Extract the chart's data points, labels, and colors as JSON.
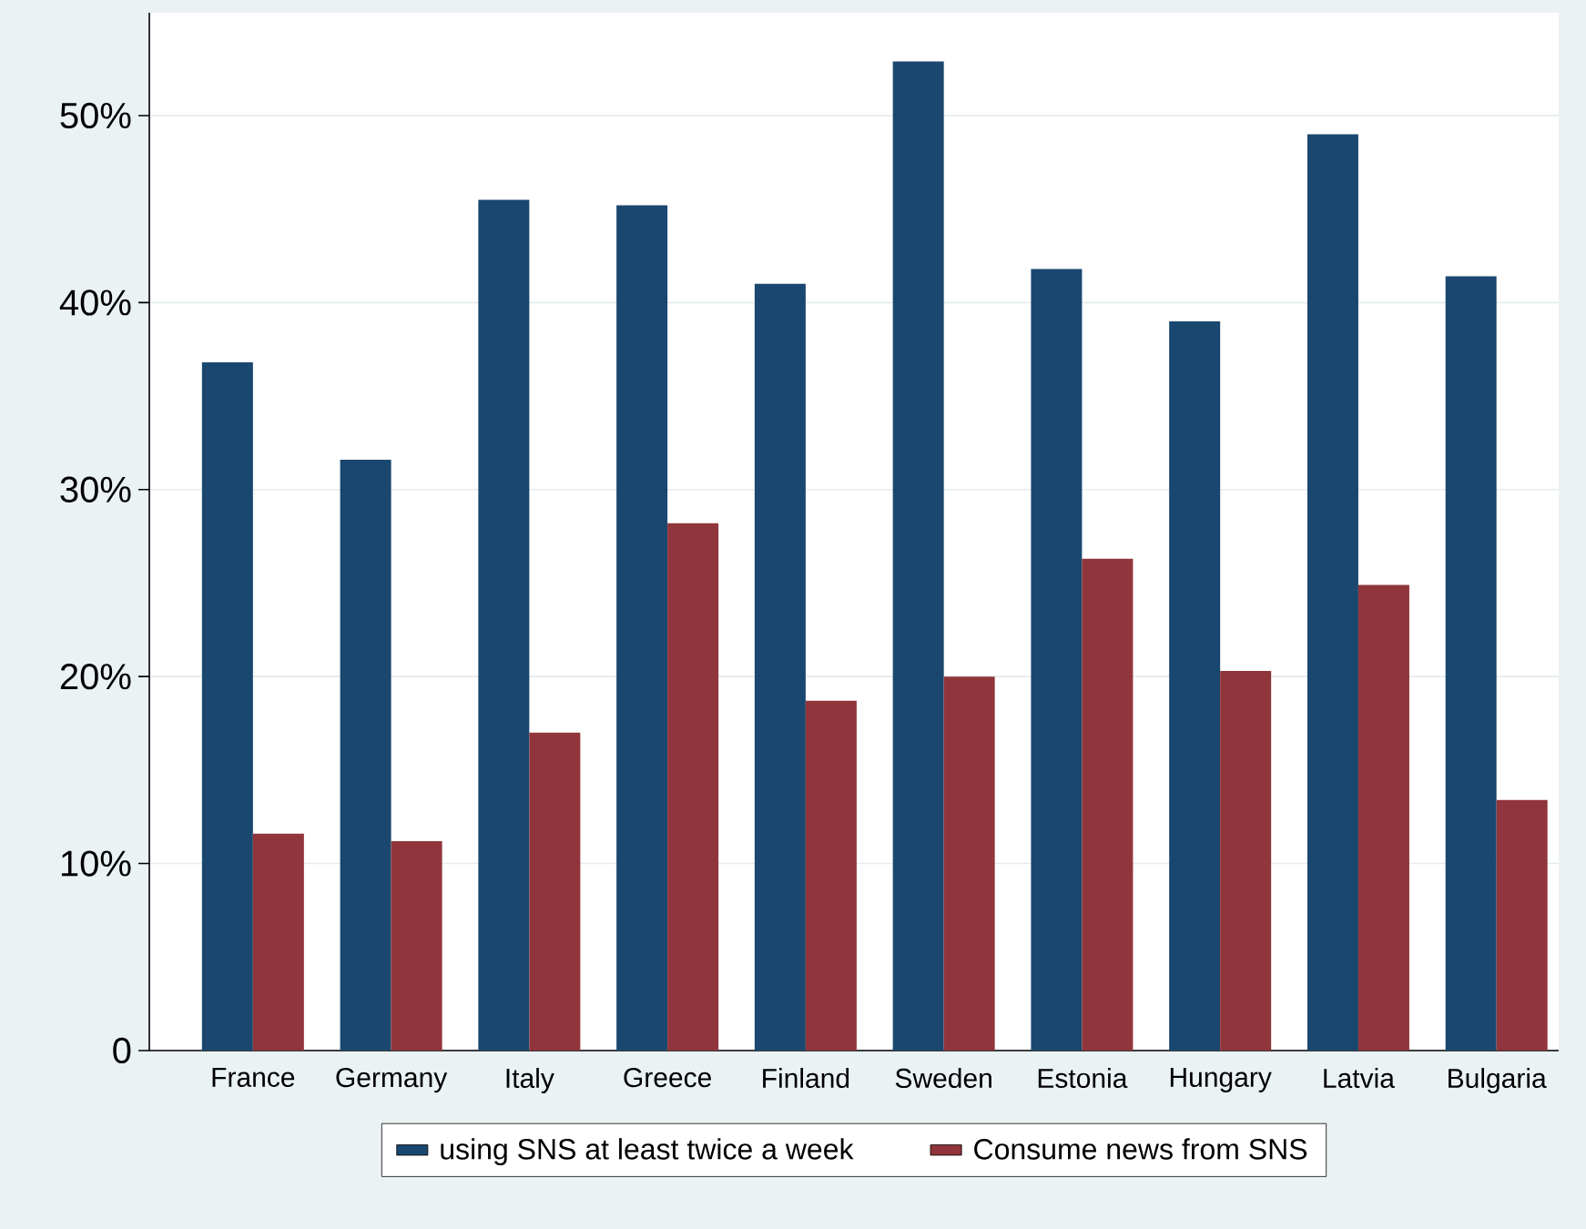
{
  "chart_data": {
    "type": "bar",
    "categories": [
      "France",
      "Germany",
      "Italy",
      "Greece",
      "Finland",
      "Sweden",
      "Estonia",
      "Hungary",
      "Latvia",
      "Bulgaria"
    ],
    "series": [
      {
        "name": "using SNS at least twice a week",
        "color": "#1a476f",
        "values": [
          36.8,
          31.6,
          45.5,
          45.2,
          41.0,
          52.9,
          41.8,
          39.0,
          49.0,
          41.4
        ]
      },
      {
        "name": "Consume news from SNS",
        "color": "#90353b",
        "values": [
          11.6,
          11.2,
          17.0,
          28.2,
          18.7,
          20.0,
          26.3,
          20.3,
          24.9,
          13.4
        ]
      }
    ],
    "ylim": [
      0,
      55.5
    ],
    "yticks": [
      0,
      {
        "value": 10,
        "label": "10%"
      },
      {
        "value": 20,
        "label": "20%"
      },
      {
        "value": 30,
        "label": "30%"
      },
      {
        "value": 40,
        "label": "40%"
      },
      {
        "value": 50,
        "label": "50%"
      }
    ],
    "grid": "y",
    "legend": "bottom"
  }
}
